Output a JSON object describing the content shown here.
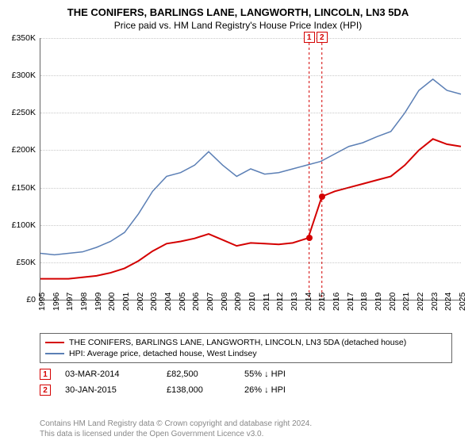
{
  "chart": {
    "type": "line",
    "title": "THE CONIFERS, BARLINGS LANE, LANGWORTH, LINCOLN, LN3 5DA",
    "subtitle": "Price paid vs. HM Land Registry's House Price Index (HPI)",
    "title_fontsize": 13,
    "subtitle_fontsize": 12,
    "background_color": "#ffffff",
    "grid_color": "#666666",
    "grid_opacity": 0.35,
    "axis_color": "#666666",
    "axis_fontsize": 10.5,
    "x": {
      "min": 1995,
      "max": 2025,
      "ticks": [
        1995,
        1996,
        1997,
        1998,
        1999,
        2000,
        2001,
        2002,
        2003,
        2004,
        2005,
        2006,
        2007,
        2008,
        2009,
        2010,
        2011,
        2012,
        2013,
        2014,
        2015,
        2016,
        2017,
        2018,
        2019,
        2020,
        2021,
        2022,
        2023,
        2024,
        2025
      ],
      "tick_labels": [
        "1995",
        "1996",
        "1997",
        "1998",
        "1999",
        "2000",
        "2001",
        "2002",
        "2003",
        "2004",
        "2005",
        "2006",
        "2007",
        "2008",
        "2009",
        "2010",
        "2011",
        "2012",
        "2013",
        "2014",
        "2015",
        "2016",
        "2017",
        "2018",
        "2019",
        "2020",
        "2021",
        "2022",
        "2023",
        "2024",
        "2025"
      ]
    },
    "y": {
      "min": 0,
      "max": 350000,
      "ticks": [
        0,
        50000,
        100000,
        150000,
        200000,
        250000,
        300000,
        350000
      ],
      "tick_labels": [
        "£0",
        "£50K",
        "£100K",
        "£150K",
        "£200K",
        "£250K",
        "£300K",
        "£350K"
      ]
    },
    "series": [
      {
        "id": "price_paid",
        "label": "THE CONIFERS, BARLINGS LANE, LANGWORTH, LINCOLN, LN3 5DA (detached house)",
        "color": "#d40000",
        "line_width": 2,
        "points": [
          [
            1995,
            28000
          ],
          [
            1996,
            28000
          ],
          [
            1997,
            28000
          ],
          [
            1998,
            30000
          ],
          [
            1999,
            32000
          ],
          [
            2000,
            36000
          ],
          [
            2001,
            42000
          ],
          [
            2002,
            52000
          ],
          [
            2003,
            65000
          ],
          [
            2004,
            75000
          ],
          [
            2005,
            78000
          ],
          [
            2006,
            82000
          ],
          [
            2007,
            88000
          ],
          [
            2008,
            80000
          ],
          [
            2009,
            72000
          ],
          [
            2010,
            76000
          ],
          [
            2011,
            75000
          ],
          [
            2012,
            74000
          ],
          [
            2013,
            76000
          ],
          [
            2014.1,
            82500
          ],
          [
            2015.08,
            138000
          ],
          [
            2016,
            145000
          ],
          [
            2017,
            150000
          ],
          [
            2018,
            155000
          ],
          [
            2019,
            160000
          ],
          [
            2020,
            165000
          ],
          [
            2021,
            180000
          ],
          [
            2022,
            200000
          ],
          [
            2023,
            215000
          ],
          [
            2024,
            208000
          ],
          [
            2025,
            205000
          ]
        ]
      },
      {
        "id": "hpi",
        "label": "HPI: Average price, detached house, West Lindsey",
        "color": "#5b7fb5",
        "line_width": 1.5,
        "points": [
          [
            1995,
            62000
          ],
          [
            1996,
            60000
          ],
          [
            1997,
            62000
          ],
          [
            1998,
            64000
          ],
          [
            1999,
            70000
          ],
          [
            2000,
            78000
          ],
          [
            2001,
            90000
          ],
          [
            2002,
            115000
          ],
          [
            2003,
            145000
          ],
          [
            2004,
            165000
          ],
          [
            2005,
            170000
          ],
          [
            2006,
            180000
          ],
          [
            2007,
            198000
          ],
          [
            2008,
            180000
          ],
          [
            2009,
            165000
          ],
          [
            2010,
            175000
          ],
          [
            2011,
            168000
          ],
          [
            2012,
            170000
          ],
          [
            2013,
            175000
          ],
          [
            2014,
            180000
          ],
          [
            2015,
            185000
          ],
          [
            2016,
            195000
          ],
          [
            2017,
            205000
          ],
          [
            2018,
            210000
          ],
          [
            2019,
            218000
          ],
          [
            2020,
            225000
          ],
          [
            2021,
            250000
          ],
          [
            2022,
            280000
          ],
          [
            2023,
            295000
          ],
          [
            2024,
            280000
          ],
          [
            2025,
            275000
          ]
        ]
      }
    ],
    "sale_markers": [
      {
        "n": "1",
        "year": 2014.17,
        "price": 82500,
        "color": "#d40000"
      },
      {
        "n": "2",
        "year": 2015.08,
        "price": 138000,
        "color": "#d40000"
      }
    ]
  },
  "legend": {
    "border_color": "#666666",
    "items": [
      {
        "color": "#d40000",
        "label": "THE CONIFERS, BARLINGS LANE, LANGWORTH, LINCOLN, LN3 5DA (detached house)"
      },
      {
        "color": "#5b7fb5",
        "label": "HPI: Average price, detached house, West Lindsey"
      }
    ]
  },
  "events": [
    {
      "n": "1",
      "color": "#d40000",
      "date": "03-MAR-2014",
      "price": "£82,500",
      "delta": "55% ↓ HPI"
    },
    {
      "n": "2",
      "color": "#d40000",
      "date": "30-JAN-2015",
      "price": "£138,000",
      "delta": "26% ↓ HPI"
    }
  ],
  "footer": {
    "line1": "Contains HM Land Registry data © Crown copyright and database right 2024.",
    "line2": "This data is licensed under the Open Government Licence v3.0.",
    "color": "#888888",
    "fontsize": 10
  }
}
